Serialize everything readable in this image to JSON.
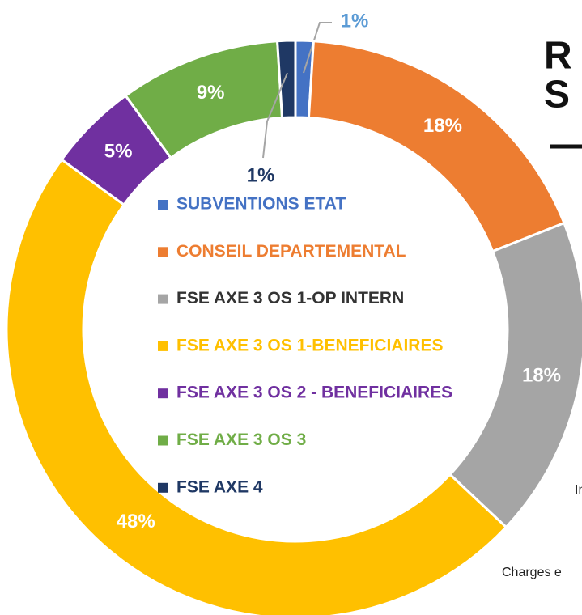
{
  "chart_data": {
    "type": "donut",
    "series": [
      {
        "name": "SUBVENTIONS ETAT",
        "color": "#4472c4",
        "values": [
          1
        ],
        "value_labels": [
          "1%"
        ]
      },
      {
        "name": "CONSEIL DEPARTEMENTAL",
        "color": "#ed7d31",
        "values": [
          18
        ],
        "value_labels": [
          "18%"
        ]
      },
      {
        "name": "FSE AXE 3 OS 1-OP INTERN",
        "color": "#a5a5a5",
        "values": [
          18
        ],
        "value_labels": [
          "18%"
        ]
      },
      {
        "name": "FSE AXE 3 OS 1-BENEFICIAIRES",
        "color": "#ffc000",
        "values": [
          48
        ],
        "value_labels": [
          "48%"
        ]
      },
      {
        "name": "FSE AXE 3 OS 2 - BENEFICIAIRES",
        "color": "#7030a0",
        "values": [
          5
        ],
        "value_labels": [
          "5%"
        ]
      },
      {
        "name": "FSE AXE 3 OS 3",
        "color": "#70ad47",
        "values": [
          9
        ],
        "value_labels": [
          "9%"
        ]
      },
      {
        "name": "FSE AXE 4",
        "color": "#1f3864",
        "values": [
          1
        ],
        "value_labels": [
          "1%"
        ]
      }
    ],
    "legend_text_colors": [
      "#4472c4",
      "#ed7d31",
      "#333333",
      "#ffc000",
      "#7030a0",
      "#70ad47",
      "#1f3864"
    ],
    "value_label_colors": [
      "#5b9bd5",
      "#ffffff",
      "#ffffff",
      "#ffffff",
      "#ffffff",
      "#ffffff",
      "#1f3864"
    ],
    "legend": "center"
  },
  "side_texts": {
    "title_line_1": "R",
    "title_line_2": "S",
    "text_1": "In",
    "text_2": "Charges e"
  }
}
